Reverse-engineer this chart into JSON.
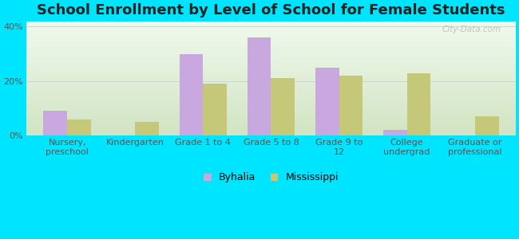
{
  "title": "School Enrollment by Level of School for Female Students",
  "categories": [
    "Nursery,\npreschool",
    "Kindergarten",
    "Grade 1 to 4",
    "Grade 5 to 8",
    "Grade 9 to\n12",
    "College\nundergrad",
    "Graduate or\nprofessional"
  ],
  "byhalia": [
    9,
    0,
    30,
    36,
    25,
    2,
    0
  ],
  "mississippi": [
    6,
    5,
    19,
    21,
    22,
    23,
    7
  ],
  "byhalia_color": "#c8a8df",
  "mississippi_color": "#c5c878",
  "ylim": [
    0,
    42
  ],
  "yticks": [
    0,
    20,
    40
  ],
  "ytick_labels": [
    "0%",
    "20%",
    "40%"
  ],
  "background_color": "#00e5ff",
  "legend_labels": [
    "Byhalia",
    "Mississippi"
  ],
  "bar_width": 0.35,
  "watermark": "City-Data.com",
  "title_fontsize": 13,
  "tick_fontsize": 8
}
